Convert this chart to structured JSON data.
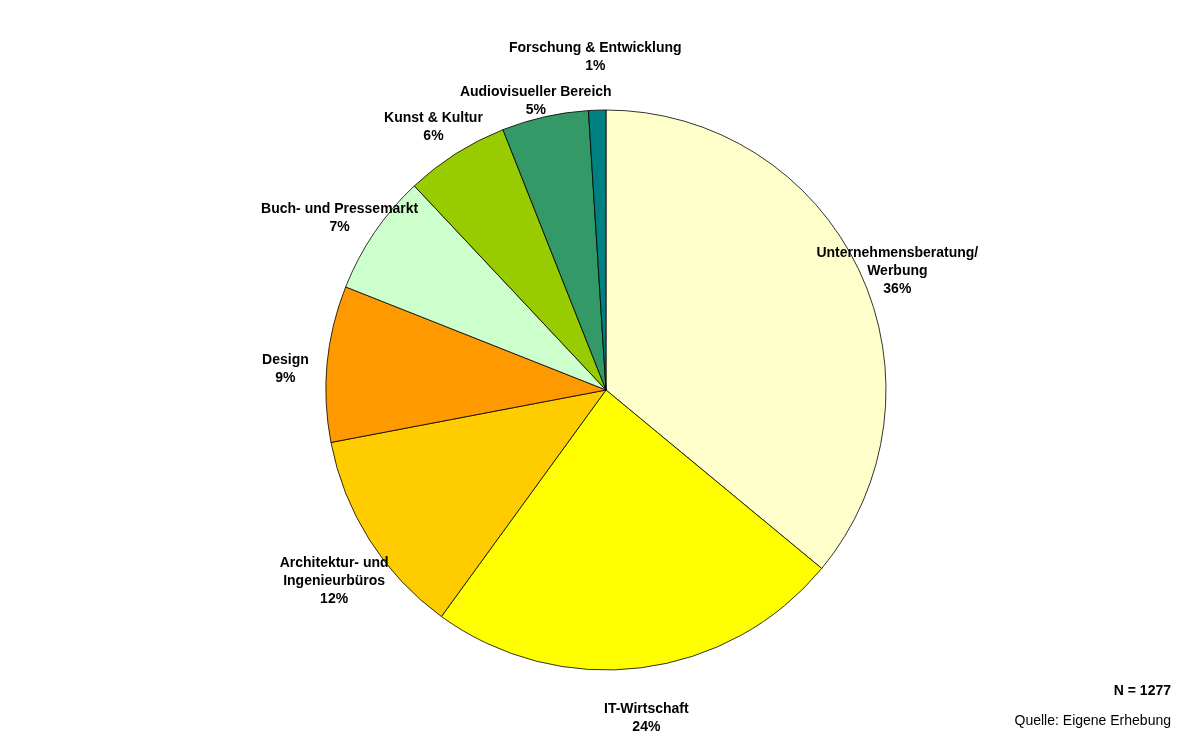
{
  "chart_data": {
    "type": "pie",
    "categories": [
      "Unternehmensberatung/\nWerbung",
      "IT-Wirtschaft",
      "Architektur- und\nIngenieurbüros",
      "Design",
      "Buch- und Pressemarkt",
      "Kunst & Kultur",
      "Audiovisueller Bereich",
      "Forschung & Entwicklung"
    ],
    "values": [
      36,
      24,
      12,
      9,
      7,
      6,
      5,
      1
    ],
    "value_labels": [
      "36%",
      "24%",
      "12%",
      "9%",
      "7%",
      "6%",
      "5%",
      "1%"
    ],
    "colors": [
      "#ffffcc",
      "#ffff00",
      "#ffcc00",
      "#ff9900",
      "#ccffcc",
      "#99cc00",
      "#339966",
      "#008080"
    ],
    "annotations": [
      "N = 1277",
      "Quelle: Eigene Erhebung"
    ]
  }
}
